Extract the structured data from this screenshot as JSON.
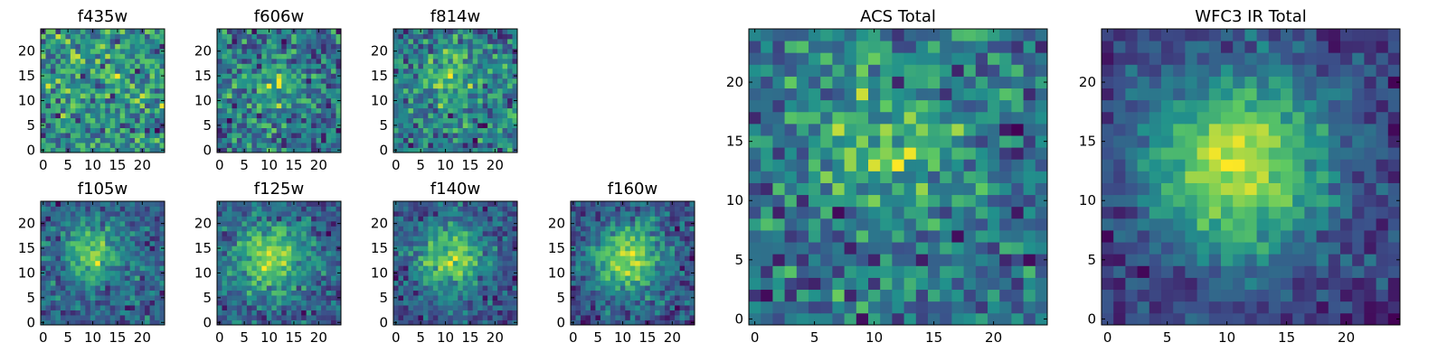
{
  "chart_data": [
    {
      "type": "heatmap",
      "title": "f435w",
      "size": 25,
      "xticks": [
        0,
        5,
        10,
        15,
        20
      ],
      "yticks": [
        0,
        5,
        10,
        15,
        20
      ],
      "xlim": [
        -0.5,
        24.5
      ],
      "ylim": [
        -0.5,
        24.5
      ],
      "source": {
        "cx": 12,
        "cy": 13,
        "sigma": 7,
        "amp": 0.1,
        "noise": 0.55,
        "seed": 11
      }
    },
    {
      "type": "heatmap",
      "title": "f606w",
      "size": 25,
      "xticks": [
        0,
        5,
        10,
        15,
        20
      ],
      "yticks": [
        0,
        5,
        10,
        15,
        20
      ],
      "xlim": [
        -0.5,
        24.5
      ],
      "ylim": [
        -0.5,
        24.5
      ],
      "source": {
        "cx": 11,
        "cy": 14,
        "sigma": 4,
        "amp": 0.35,
        "noise": 0.5,
        "seed": 23
      }
    },
    {
      "type": "heatmap",
      "title": "f814w",
      "size": 25,
      "xticks": [
        0,
        5,
        10,
        15,
        20
      ],
      "yticks": [
        0,
        5,
        10,
        15,
        20
      ],
      "xlim": [
        -0.5,
        24.5
      ],
      "ylim": [
        -0.5,
        24.5
      ],
      "source": {
        "cx": 11,
        "cy": 15,
        "sigma": 4,
        "amp": 0.4,
        "noise": 0.45,
        "seed": 37
      }
    },
    {
      "type": "heatmap",
      "title": "f105w",
      "size": 25,
      "xticks": [
        0,
        5,
        10,
        15,
        20
      ],
      "yticks": [
        0,
        5,
        10,
        15,
        20
      ],
      "xlim": [
        -0.5,
        24.5
      ],
      "ylim": [
        -0.5,
        24.5
      ],
      "source": {
        "cx": 10,
        "cy": 14,
        "sigma": 4,
        "amp": 0.7,
        "noise": 0.35,
        "seed": 41
      }
    },
    {
      "type": "heatmap",
      "title": "f125w",
      "size": 25,
      "xticks": [
        0,
        5,
        10,
        15,
        20
      ],
      "yticks": [
        0,
        5,
        10,
        15,
        20
      ],
      "xlim": [
        -0.5,
        24.5
      ],
      "ylim": [
        -0.5,
        24.5
      ],
      "source": {
        "cx": 10,
        "cy": 13,
        "sigma": 5,
        "amp": 0.7,
        "noise": 0.3,
        "seed": 53
      }
    },
    {
      "type": "heatmap",
      "title": "f140w",
      "size": 25,
      "xticks": [
        0,
        5,
        10,
        15,
        20
      ],
      "yticks": [
        0,
        5,
        10,
        15,
        20
      ],
      "xlim": [
        -0.5,
        24.5
      ],
      "ylim": [
        -0.5,
        24.5
      ],
      "source": {
        "cx": 11,
        "cy": 13,
        "sigma": 5,
        "amp": 0.75,
        "noise": 0.3,
        "seed": 67
      }
    },
    {
      "type": "heatmap",
      "title": "f160w",
      "size": 25,
      "xticks": [
        0,
        5,
        10,
        15,
        20
      ],
      "yticks": [
        0,
        5,
        10,
        15,
        20
      ],
      "xlim": [
        -0.5,
        24.5
      ],
      "ylim": [
        -0.5,
        24.5
      ],
      "source": {
        "cx": 11,
        "cy": 13,
        "sigma": 5,
        "amp": 0.75,
        "noise": 0.28,
        "seed": 79
      }
    },
    {
      "type": "heatmap",
      "title": "ACS Total",
      "size": 25,
      "xticks": [
        0,
        5,
        10,
        15,
        20
      ],
      "yticks": [
        0,
        5,
        10,
        15,
        20
      ],
      "xlim": [
        -0.5,
        24.5
      ],
      "ylim": [
        -0.5,
        24.5
      ],
      "source": {
        "cx": 11,
        "cy": 15,
        "sigma": 5,
        "amp": 0.35,
        "noise": 0.35,
        "seed": 97
      }
    },
    {
      "type": "heatmap",
      "title": "WFC3 IR Total",
      "size": 25,
      "xticks": [
        0,
        5,
        10,
        15,
        20
      ],
      "yticks": [
        0,
        5,
        10,
        15,
        20
      ],
      "xlim": [
        -0.5,
        24.5
      ],
      "ylim": [
        -0.5,
        24.5
      ],
      "source": {
        "cx": 11,
        "cy": 13,
        "sigma": 5.5,
        "amp": 0.9,
        "noise": 0.2,
        "seed": 113
      }
    }
  ],
  "colors": {
    "colormap": "viridis",
    "stops": [
      "#440154",
      "#3b528b",
      "#21918c",
      "#5ec962",
      "#fde725"
    ]
  }
}
